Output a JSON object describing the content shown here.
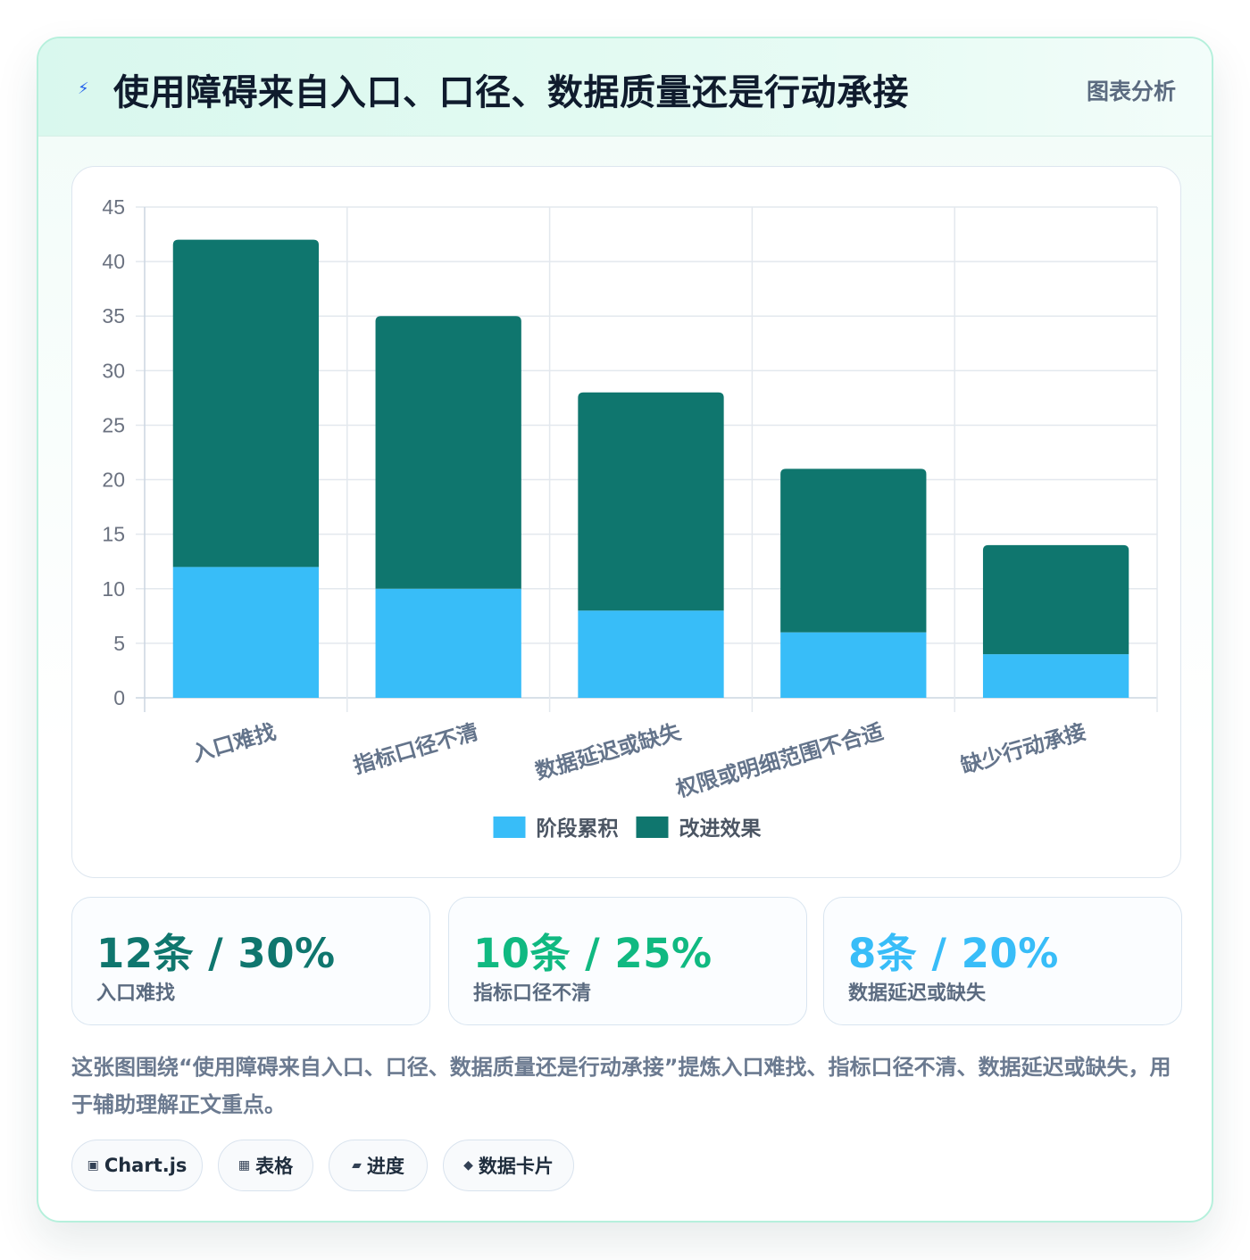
{
  "header": {
    "icon": "bolt-icon",
    "title": "使用障碍来自入口、口径、数据质量还是行动承接",
    "tag": "图表分析"
  },
  "chart_data": {
    "type": "bar",
    "stacked": true,
    "categories": [
      "入口难找",
      "指标口径不清",
      "数据延迟或缺失",
      "权限或明细范围不合适",
      "缺少行动承接"
    ],
    "series": [
      {
        "name": "阶段累积",
        "values": [
          12,
          10,
          8,
          6,
          4
        ],
        "color": "#38bdf8"
      },
      {
        "name": "改进效果",
        "values": [
          30,
          25,
          20,
          15,
          10
        ],
        "color": "#0f766e"
      }
    ],
    "ylim": [
      0,
      45
    ],
    "yticks": [
      0,
      5,
      10,
      15,
      20,
      25,
      30,
      35,
      40,
      45
    ],
    "grid": true,
    "legend": "bottom",
    "title": "",
    "xlabel": "",
    "ylabel": ""
  },
  "stats": [
    {
      "value": "12条 / 30%",
      "label": "入口难找",
      "color": "#0f766e"
    },
    {
      "value": "10条 / 25%",
      "label": "指标口径不清",
      "color": "#10b981"
    },
    {
      "value": "8条 / 20%",
      "label": "数据延迟或缺失",
      "color": "#38bdf8"
    }
  ],
  "description": "这张图围绕“使用障碍来自入口、口径、数据质量还是行动承接”提炼入口难找、指标口径不清、数据延迟或缺失，用于辅助理解正文重点。",
  "pills": [
    {
      "icon": "chip-icon",
      "glyph": "▣",
      "label": "Chart.js"
    },
    {
      "icon": "table-icon",
      "glyph": "▦",
      "label": "表格"
    },
    {
      "icon": "progress-icon",
      "glyph": "▰",
      "label": "进度"
    },
    {
      "icon": "diamond-icon",
      "glyph": "◆",
      "label": "数据卡片"
    }
  ]
}
